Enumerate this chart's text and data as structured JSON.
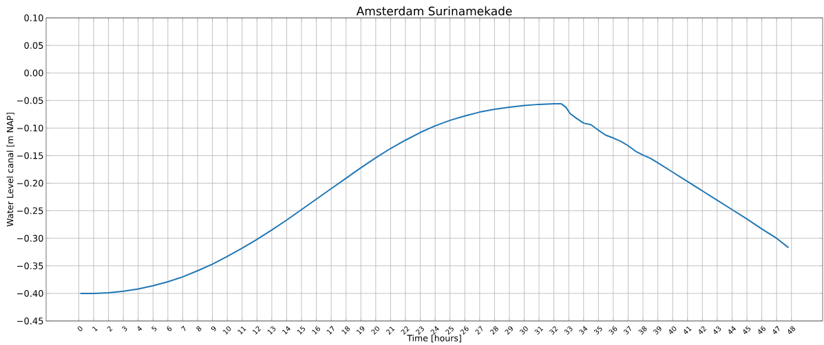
{
  "chart_data": {
    "type": "line",
    "title": "Amsterdam Surinamekade",
    "xlabel": "Time [hours]",
    "ylabel": "Water Level canal [m NAP]",
    "xlim": [
      -2.2,
      50.1
    ],
    "ylim": [
      -0.45,
      0.1
    ],
    "xticks": [
      0,
      1,
      2,
      3,
      4,
      5,
      6,
      7,
      8,
      9,
      10,
      11,
      12,
      13,
      14,
      15,
      16,
      17,
      18,
      19,
      20,
      21,
      22,
      23,
      24,
      25,
      26,
      27,
      28,
      29,
      30,
      31,
      32,
      33,
      34,
      35,
      36,
      37,
      38,
      39,
      40,
      41,
      42,
      43,
      44,
      45,
      46,
      47,
      48
    ],
    "yticks": [
      {
        "value": -0.45,
        "label": "−0.45"
      },
      {
        "value": -0.4,
        "label": "−0.40"
      },
      {
        "value": -0.35,
        "label": "−0.35"
      },
      {
        "value": -0.3,
        "label": "−0.30"
      },
      {
        "value": -0.25,
        "label": "−0.25"
      },
      {
        "value": -0.2,
        "label": "−0.20"
      },
      {
        "value": -0.15,
        "label": "−0.15"
      },
      {
        "value": -0.1,
        "label": "−0.10"
      },
      {
        "value": -0.05,
        "label": "−0.05"
      },
      {
        "value": 0,
        "label": "0.00"
      },
      {
        "value": 0.05,
        "label": "0.05"
      },
      {
        "value": 0.1,
        "label": "0.10"
      }
    ],
    "grid": true,
    "marker": "none",
    "line_style": "solid",
    "series": [
      {
        "color": "#1f77b4",
        "x": [
          0.1,
          1,
          2,
          3,
          4,
          5,
          6,
          7,
          8,
          9,
          10,
          11,
          12,
          13,
          14,
          15,
          16,
          17,
          18,
          19,
          20,
          21,
          22,
          23,
          24,
          25,
          26,
          27,
          28,
          29,
          30,
          31,
          32,
          32.5,
          32.8,
          33.1,
          33.5,
          34,
          34.5,
          35,
          35.5,
          36,
          36.5,
          37,
          37.5,
          38,
          38.5,
          39,
          40,
          41,
          42,
          43,
          44,
          45,
          46,
          47,
          47.8
        ],
        "values": [
          -0.4,
          -0.4,
          -0.399,
          -0.396,
          -0.392,
          -0.386,
          -0.379,
          -0.37,
          -0.359,
          -0.347,
          -0.333,
          -0.318,
          -0.302,
          -0.285,
          -0.267,
          -0.248,
          -0.229,
          -0.21,
          -0.191,
          -0.172,
          -0.154,
          -0.137,
          -0.122,
          -0.108,
          -0.096,
          -0.086,
          -0.078,
          -0.071,
          -0.066,
          -0.062,
          -0.059,
          -0.057,
          -0.056,
          -0.056,
          -0.062,
          -0.074,
          -0.082,
          -0.091,
          -0.094,
          -0.104,
          -0.113,
          -0.118,
          -0.124,
          -0.132,
          -0.142,
          -0.149,
          -0.155,
          -0.163,
          -0.18,
          -0.197,
          -0.214,
          -0.231,
          -0.248,
          -0.265,
          -0.283,
          -0.3,
          -0.317
        ]
      }
    ]
  }
}
